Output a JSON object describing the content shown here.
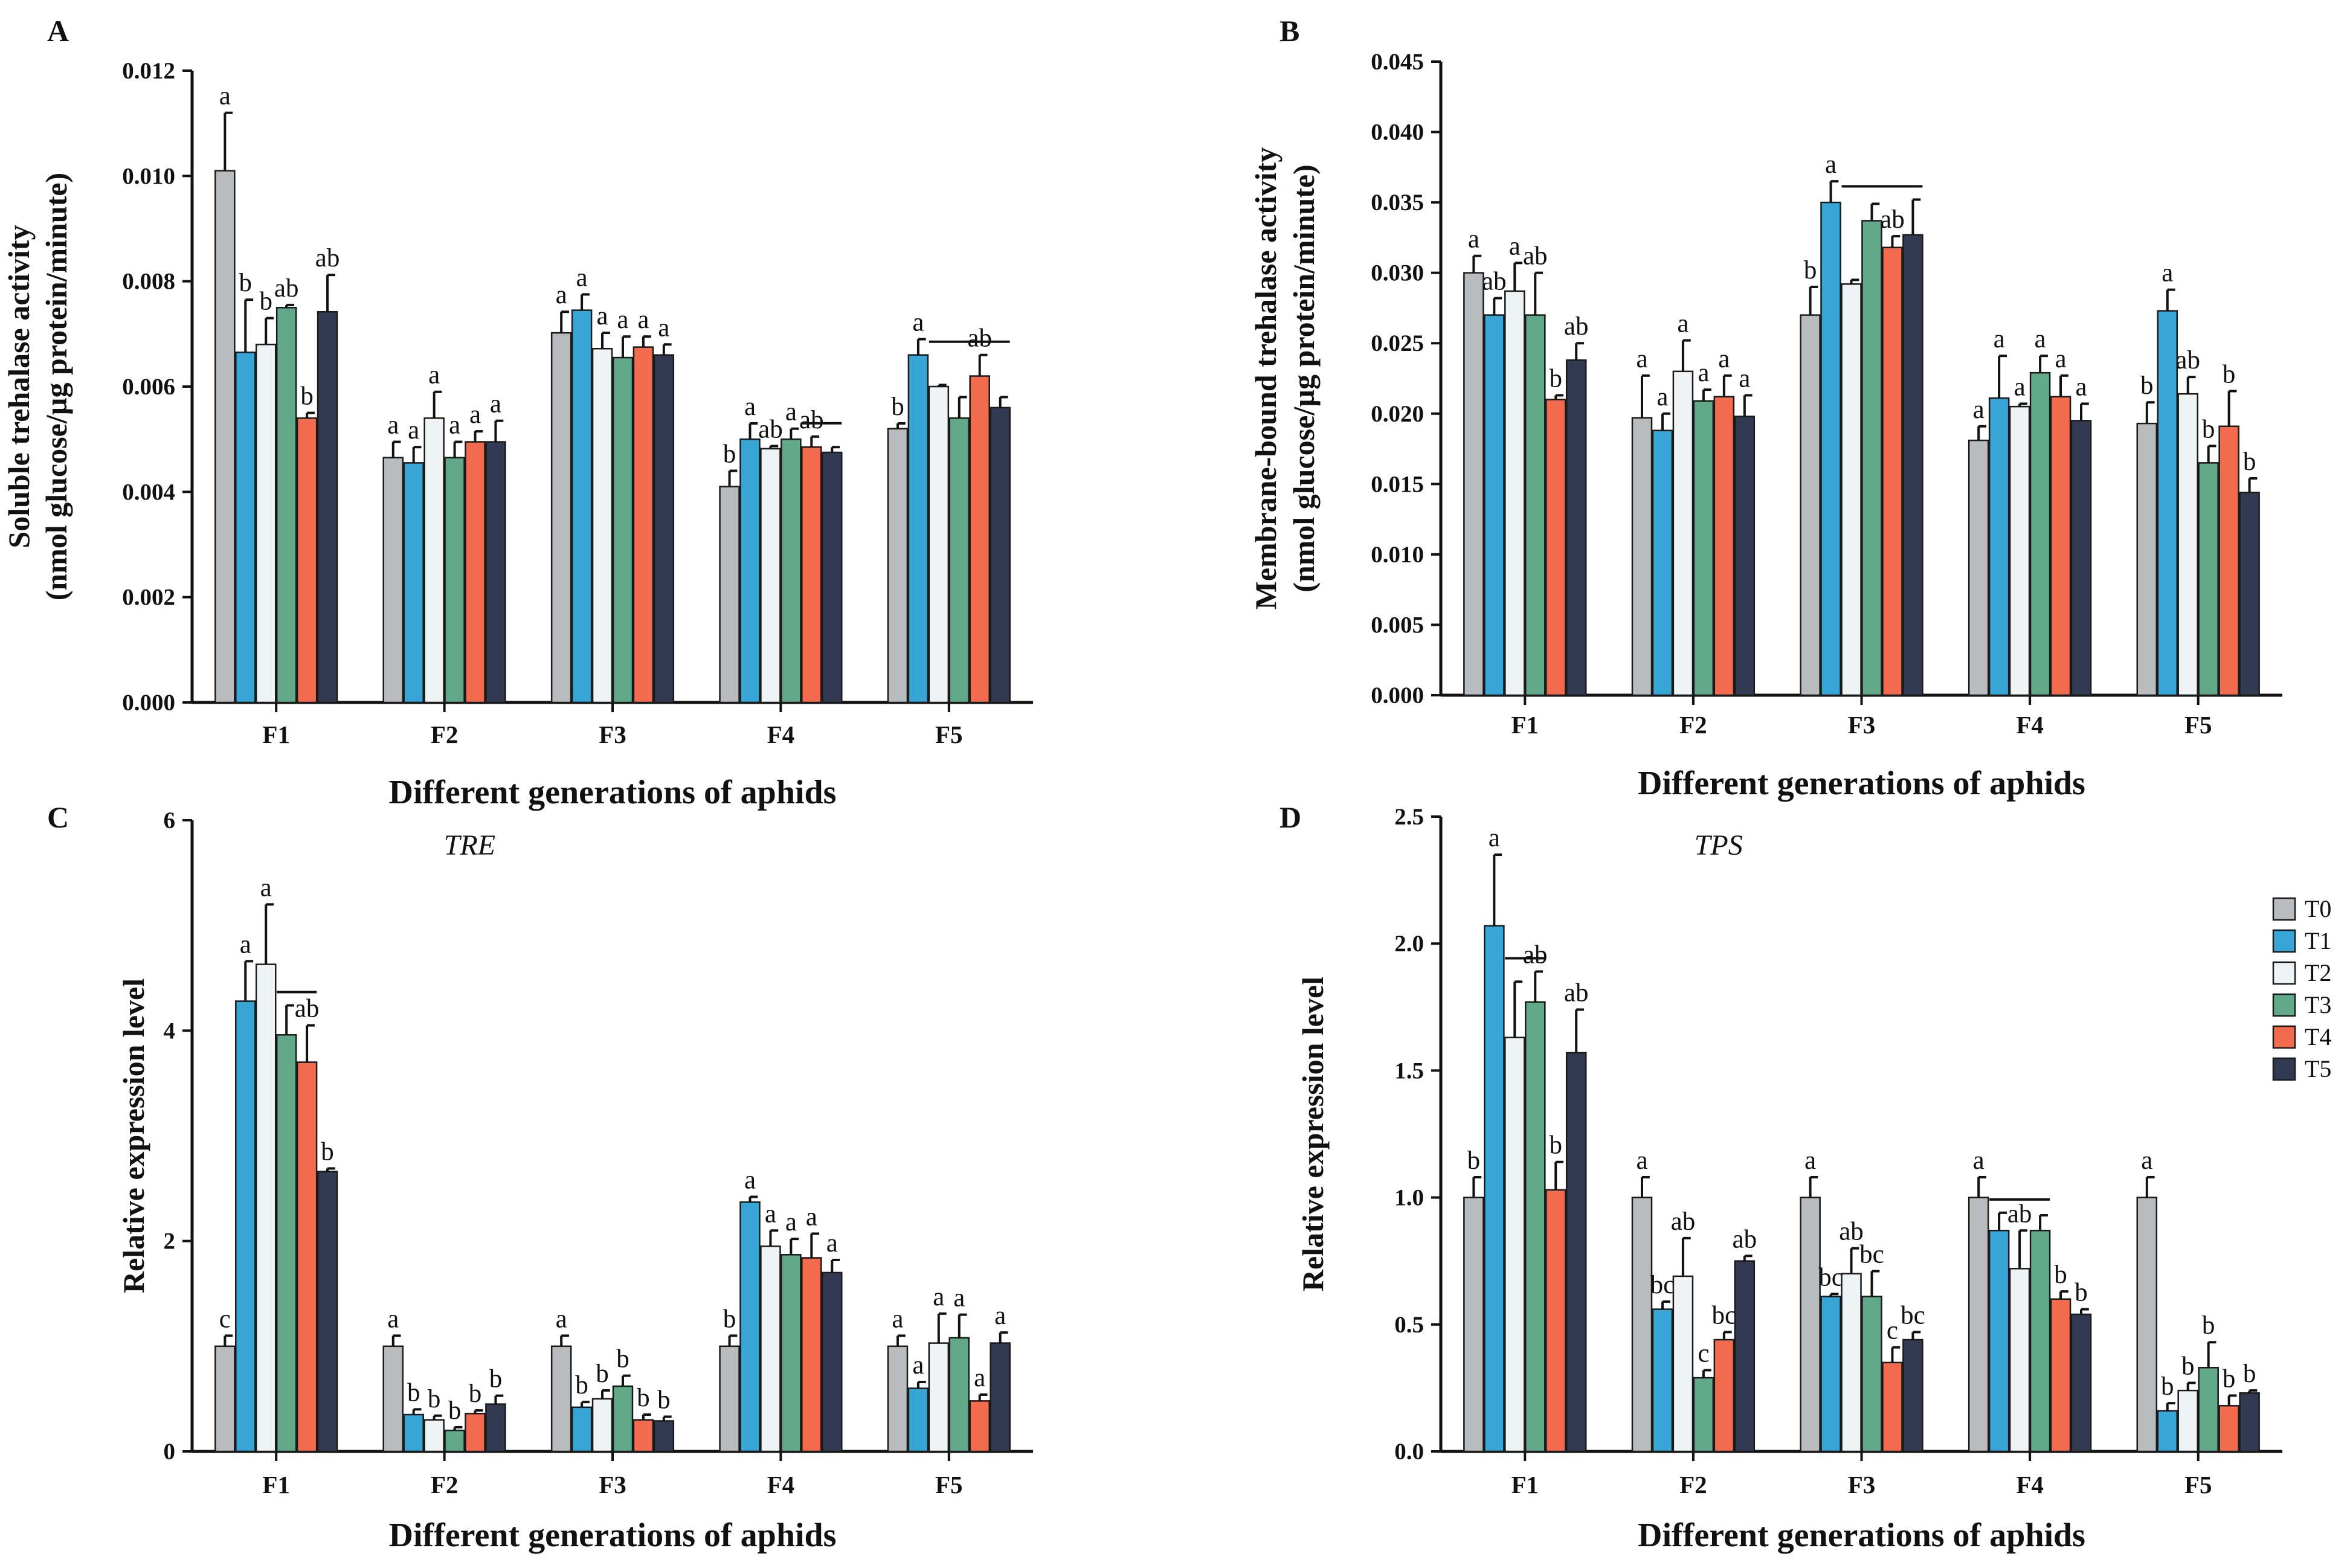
{
  "legend": [
    {
      "name": "T0",
      "color": "#b9bcbf"
    },
    {
      "name": "T1",
      "color": "#37a5d6"
    },
    {
      "name": "T2",
      "color": "#eef3f5"
    },
    {
      "name": "T3",
      "color": "#62a98a"
    },
    {
      "name": "T4",
      "color": "#f26b4f"
    },
    {
      "name": "T5",
      "color": "#323a52"
    }
  ],
  "chart_data": [
    {
      "panel": "A",
      "type": "bar",
      "title": "",
      "ylabel_lines": [
        "Soluble trehalase activity",
        "(nmol glucose/µg protein/minute)"
      ],
      "xlabel": "Different generations of aphids",
      "ylim": [
        0,
        0.012
      ],
      "yticks": [
        "0.000",
        "0.002",
        "0.004",
        "0.006",
        "0.008",
        "0.010",
        "0.012"
      ],
      "categories": [
        "F1",
        "F2",
        "F3",
        "F4",
        "F5"
      ],
      "series": [
        {
          "name": "T0",
          "values": [
            0.0101,
            0.00465,
            0.00702,
            0.0041,
            0.0052
          ],
          "errors": [
            0.0011,
            0.0003,
            0.0004,
            0.0003,
            0.0001
          ]
        },
        {
          "name": "T1",
          "values": [
            0.00665,
            0.00455,
            0.00745,
            0.005,
            0.0066
          ],
          "errors": [
            0.001,
            0.0003,
            0.0003,
            0.0003,
            0.0003
          ]
        },
        {
          "name": "T2",
          "values": [
            0.0068,
            0.0054,
            0.00672,
            0.00482,
            0.006
          ],
          "errors": [
            0.0005,
            0.0005,
            0.0003,
            5e-05,
            3e-05
          ]
        },
        {
          "name": "T3",
          "values": [
            0.0075,
            0.00465,
            0.00655,
            0.005,
            0.0054
          ],
          "errors": [
            5e-05,
            0.0003,
            0.0004,
            0.0002,
            0.0004
          ]
        },
        {
          "name": "T4",
          "values": [
            0.0054,
            0.00495,
            0.00675,
            0.00485,
            0.0062
          ],
          "errors": [
            0.0001,
            0.0002,
            0.0002,
            0.0002,
            0.0004
          ]
        },
        {
          "name": "T5",
          "values": [
            0.00742,
            0.00495,
            0.0066,
            0.00475,
            0.0056
          ],
          "errors": [
            0.0007,
            0.0004,
            0.0002,
            0.0001,
            0.0002
          ]
        }
      ],
      "sig_letters": [
        [
          "a",
          "b",
          "b",
          "ab",
          "b",
          "ab"
        ],
        [
          "a",
          "a",
          "a",
          "a",
          "a",
          "a"
        ],
        [
          "a",
          "a",
          "a",
          "a",
          "a",
          "a"
        ],
        [
          "b",
          "a",
          "ab",
          "a",
          "ab",
          ""
        ],
        [
          "b",
          "a",
          "",
          "",
          "ab",
          ""
        ]
      ],
      "brackets": [
        {
          "category": 3,
          "from_series": 4,
          "to_series": 5,
          "letter_index": 4
        },
        {
          "category": 4,
          "from_series": 2,
          "to_series": 5,
          "letter_index": 4
        }
      ]
    },
    {
      "panel": "B",
      "type": "bar",
      "title": "",
      "ylabel_lines": [
        "Membrane-bound trehalase activity",
        "(nmol glucose/µg protein/minute)"
      ],
      "xlabel": "Different generations of aphids",
      "ylim": [
        0,
        0.045
      ],
      "yticks": [
        "0.000",
        "0.005",
        "0.010",
        "0.015",
        "0.020",
        "0.025",
        "0.030",
        "0.035",
        "0.040",
        "0.045"
      ],
      "categories": [
        "F1",
        "F2",
        "F3",
        "F4",
        "F5"
      ],
      "series": [
        {
          "name": "T0",
          "values": [
            0.03,
            0.0197,
            0.027,
            0.0181,
            0.0193
          ],
          "errors": [
            0.0012,
            0.003,
            0.002,
            0.001,
            0.0015
          ]
        },
        {
          "name": "T1",
          "values": [
            0.027,
            0.0188,
            0.035,
            0.0211,
            0.0273
          ],
          "errors": [
            0.0012,
            0.0012,
            0.0015,
            0.003,
            0.0015
          ]
        },
        {
          "name": "T2",
          "values": [
            0.0287,
            0.023,
            0.0292,
            0.0205,
            0.0214
          ],
          "errors": [
            0.002,
            0.0022,
            0.0003,
            0.0002,
            0.0012
          ]
        },
        {
          "name": "T3",
          "values": [
            0.027,
            0.0209,
            0.0337,
            0.0229,
            0.0165
          ],
          "errors": [
            0.003,
            0.0008,
            0.0012,
            0.0012,
            0.0012
          ]
        },
        {
          "name": "T4",
          "values": [
            0.021,
            0.0212,
            0.0318,
            0.0212,
            0.0191
          ],
          "errors": [
            0.0003,
            0.0015,
            0.0008,
            0.0015,
            0.0025
          ]
        },
        {
          "name": "T5",
          "values": [
            0.0238,
            0.0198,
            0.0327,
            0.0195,
            0.0144
          ],
          "errors": [
            0.0012,
            0.0015,
            0.0025,
            0.0012,
            0.001
          ]
        }
      ],
      "sig_letters": [
        [
          "a",
          "ab",
          "a",
          "ab",
          "b",
          "ab"
        ],
        [
          "a",
          "a",
          "a",
          "a",
          "a",
          "a"
        ],
        [
          "b",
          "a",
          "",
          "",
          "ab",
          ""
        ],
        [
          "a",
          "a",
          "a",
          "a",
          "a",
          "a"
        ],
        [
          "b",
          "a",
          "ab",
          "b",
          "b",
          "b"
        ]
      ],
      "brackets": [
        {
          "category": 2,
          "from_series": 2,
          "to_series": 5,
          "letter_index": 4
        }
      ]
    },
    {
      "panel": "C",
      "type": "bar",
      "title": "TRE",
      "ylabel_lines": [
        "Relative expression level"
      ],
      "xlabel": "Different generations of aphids",
      "ylim": [
        0,
        6
      ],
      "yticks": [
        "0",
        "2",
        "4",
        "6"
      ],
      "categories": [
        "F1",
        "F2",
        "F3",
        "F4",
        "F5"
      ],
      "series": [
        {
          "name": "T0",
          "values": [
            1.0,
            1.0,
            1.0,
            1.0,
            1.0
          ],
          "errors": [
            0.1,
            0.1,
            0.1,
            0.1,
            0.1
          ]
        },
        {
          "name": "T1",
          "values": [
            4.28,
            0.35,
            0.42,
            2.37,
            0.6
          ],
          "errors": [
            0.38,
            0.05,
            0.05,
            0.05,
            0.06
          ]
        },
        {
          "name": "T2",
          "values": [
            4.63,
            0.3,
            0.5,
            1.95,
            1.03
          ],
          "errors": [
            0.57,
            0.04,
            0.08,
            0.15,
            0.28
          ]
        },
        {
          "name": "T3",
          "values": [
            3.96,
            0.2,
            0.62,
            1.87,
            1.08
          ],
          "errors": [
            0.28,
            0.03,
            0.1,
            0.15,
            0.22
          ]
        },
        {
          "name": "T4",
          "values": [
            3.7,
            0.36,
            0.3,
            1.84,
            0.48
          ],
          "errors": [
            0.35,
            0.03,
            0.05,
            0.23,
            0.06
          ]
        },
        {
          "name": "T5",
          "values": [
            2.66,
            0.45,
            0.29,
            1.7,
            1.03
          ],
          "errors": [
            0.03,
            0.08,
            0.04,
            0.12,
            0.1
          ]
        }
      ],
      "sig_letters": [
        [
          "c",
          "a",
          "a",
          "",
          "ab",
          "b"
        ],
        [
          "a",
          "b",
          "b",
          "b",
          "b",
          "b"
        ],
        [
          "a",
          "b",
          "b",
          "b",
          "b",
          "b"
        ],
        [
          "b",
          "a",
          "a",
          "a",
          "a",
          "a"
        ],
        [
          "a",
          "a",
          "a",
          "a",
          "a",
          "a"
        ]
      ],
      "brackets": [
        {
          "category": 0,
          "from_series": 3,
          "to_series": 4,
          "letter_index": 4
        }
      ]
    },
    {
      "panel": "D",
      "type": "bar",
      "title": "TPS",
      "ylabel_lines": [
        "Relative expression level"
      ],
      "xlabel": "Different generations of aphids",
      "ylim": [
        0,
        2.5
      ],
      "yticks": [
        "0.0",
        "0.5",
        "1.0",
        "1.5",
        "2.0",
        "2.5"
      ],
      "categories": [
        "F1",
        "F2",
        "F3",
        "F4",
        "F5"
      ],
      "series": [
        {
          "name": "T0",
          "values": [
            1.0,
            1.0,
            1.0,
            1.0,
            1.0
          ],
          "errors": [
            0.08,
            0.08,
            0.08,
            0.08,
            0.08
          ]
        },
        {
          "name": "T1",
          "values": [
            2.07,
            0.56,
            0.61,
            0.87,
            0.16
          ],
          "errors": [
            0.28,
            0.03,
            0.01,
            0.07,
            0.03
          ]
        },
        {
          "name": "T2",
          "values": [
            1.63,
            0.69,
            0.7,
            0.72,
            0.24
          ],
          "errors": [
            0.22,
            0.15,
            0.1,
            0.15,
            0.03
          ]
        },
        {
          "name": "T3",
          "values": [
            1.77,
            0.29,
            0.61,
            0.87,
            0.33
          ],
          "errors": [
            0.12,
            0.03,
            0.1,
            0.06,
            0.1
          ]
        },
        {
          "name": "T4",
          "values": [
            1.03,
            0.44,
            0.35,
            0.6,
            0.18
          ],
          "errors": [
            0.11,
            0.03,
            0.06,
            0.03,
            0.04
          ]
        },
        {
          "name": "T5",
          "values": [
            1.57,
            0.75,
            0.44,
            0.54,
            0.23
          ],
          "errors": [
            0.17,
            0.02,
            0.03,
            0.02,
            0.01
          ]
        }
      ],
      "sig_letters": [
        [
          "b",
          "a",
          "",
          "ab",
          "b",
          "ab"
        ],
        [
          "a",
          "bc",
          "ab",
          "c",
          "bc",
          "ab"
        ],
        [
          "a",
          "bc",
          "ab",
          "bc",
          "c",
          "bc"
        ],
        [
          "a",
          "",
          "ab",
          "",
          "b",
          "b"
        ],
        [
          "a",
          "b",
          "b",
          "b",
          "b",
          "b"
        ]
      ],
      "brackets": [
        {
          "category": 0,
          "from_series": 2,
          "to_series": 3,
          "letter_index": 3
        },
        {
          "category": 3,
          "from_series": 1,
          "to_series": 3,
          "letter_index": 2
        }
      ]
    }
  ]
}
